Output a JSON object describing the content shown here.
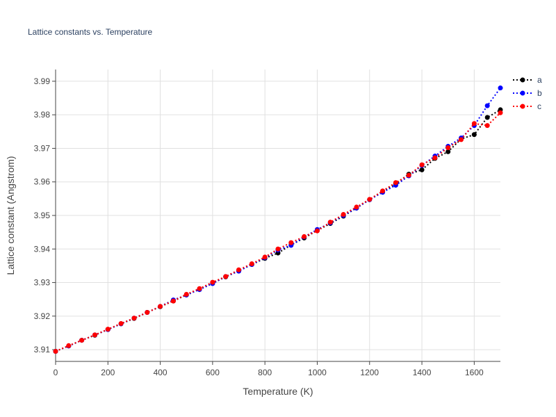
{
  "chart_data": {
    "type": "line",
    "title": "Lattice constants vs. Temperature",
    "xlabel": "Temperature (K)",
    "ylabel": "Lattice constant (Angstrom)",
    "xlim": [
      0,
      1700
    ],
    "ylim": [
      3.9065,
      3.9935
    ],
    "x_ticks": [
      0,
      200,
      400,
      600,
      800,
      1000,
      1200,
      1400,
      1600
    ],
    "x_tick_labels": [
      "0",
      "200",
      "400",
      "600",
      "800",
      "1000",
      "1200",
      "1400",
      "1600"
    ],
    "y_ticks": [
      3.91,
      3.92,
      3.93,
      3.94,
      3.95,
      3.96,
      3.97,
      3.98,
      3.99
    ],
    "y_tick_labels": [
      "3.91",
      "3.92",
      "3.93",
      "3.94",
      "3.95",
      "3.96",
      "3.97",
      "3.98",
      "3.99"
    ],
    "grid": true,
    "legend_position": "top-right",
    "x": [
      0,
      50,
      100,
      150,
      200,
      250,
      300,
      350,
      400,
      450,
      500,
      550,
      600,
      650,
      700,
      750,
      800,
      850,
      900,
      950,
      1000,
      1050,
      1100,
      1150,
      1200,
      1250,
      1300,
      1350,
      1400,
      1450,
      1500,
      1550,
      1600,
      1650,
      1700
    ],
    "series": [
      {
        "name": "a",
        "color": "#000000",
        "values": [
          3.9095,
          3.9111,
          3.9128,
          3.9143,
          3.916,
          3.9177,
          3.9193,
          3.9211,
          3.9228,
          3.9245,
          3.9263,
          3.9281,
          3.9298,
          3.9317,
          3.9335,
          3.9354,
          3.9372,
          3.9388,
          3.9412,
          3.9433,
          3.9455,
          3.9476,
          3.9498,
          3.9522,
          3.9547,
          3.9572,
          3.9595,
          3.9623,
          3.9636,
          3.967,
          3.969,
          3.9728,
          3.9741,
          3.9792,
          3.9815
        ]
      },
      {
        "name": "b",
        "color": "#0000ff",
        "values": [
          3.9095,
          3.9111,
          3.9128,
          3.9144,
          3.916,
          3.9177,
          3.9194,
          3.9211,
          3.9229,
          3.9248,
          3.9263,
          3.9279,
          3.9297,
          3.9318,
          3.9334,
          3.9354,
          3.9374,
          3.9397,
          3.9411,
          3.9436,
          3.9458,
          3.9478,
          3.95,
          3.9522,
          3.9547,
          3.9569,
          3.959,
          3.9618,
          3.9649,
          3.9677,
          3.9706,
          3.9731,
          3.9768,
          3.9827,
          3.988
        ]
      },
      {
        "name": "c",
        "color": "#ff0000",
        "values": [
          3.9095,
          3.9112,
          3.9128,
          3.9144,
          3.9161,
          3.9178,
          3.9194,
          3.9211,
          3.9229,
          3.9245,
          3.9265,
          3.9282,
          3.9301,
          3.9318,
          3.9338,
          3.9356,
          3.9376,
          3.94,
          3.9419,
          3.9437,
          3.9454,
          3.948,
          3.9503,
          3.9525,
          3.9548,
          3.9573,
          3.9598,
          3.962,
          3.9651,
          3.9672,
          3.9702,
          3.9726,
          3.9774,
          3.9768,
          3.9806
        ]
      }
    ]
  }
}
